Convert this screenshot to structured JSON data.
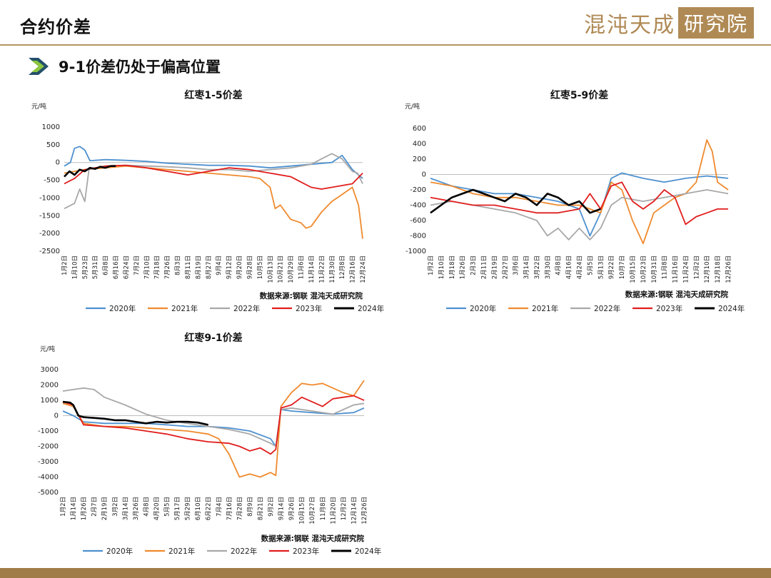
{
  "header": {
    "title": "合约价差",
    "brand_text": "混沌天成",
    "brand_boxed": "研究院"
  },
  "section": {
    "title": "9-1价差仍处于偏高位置"
  },
  "colors": {
    "2020年": "#4e91cf",
    "2021年": "#ef8a2e",
    "2022年": "#a8a8a8",
    "2023年": "#e11d1d",
    "2024年": "#000000"
  },
  "chart_data": [
    {
      "type": "line",
      "title": "红枣1-5价差",
      "ylabel": "元/吨",
      "source": "数据来源:钢联 混沌天成研究院",
      "ylim": [
        -2500,
        1000
      ],
      "yticks": [
        1000,
        500,
        0,
        -500,
        -1000,
        -1500,
        -2000,
        -2500
      ],
      "xticks": [
        "1月2日",
        "1月10日",
        "5月23日",
        "5月31日",
        "6月8日",
        "6月16日",
        "6月24日",
        "7月2日",
        "7月10日",
        "7月18日",
        "7月26日",
        "8月3日",
        "8月11日",
        "8月19日",
        "8月27日",
        "9月4日",
        "9月12日",
        "9月20日",
        "9月28日",
        "10月5日",
        "10月13日",
        "10月21日",
        "10月29日",
        "11月6日",
        "11月14日",
        "11月22日",
        "11月30日",
        "12月8日",
        "12月16日",
        "12月24日"
      ],
      "legend": [
        "2020年",
        "2021年",
        "2022年",
        "2023年",
        "2024年"
      ],
      "series": [
        {
          "name": "2020年",
          "x": [
            0,
            0.6,
            1,
            1.5,
            2,
            2.5,
            4,
            6,
            8,
            10,
            12,
            14,
            16,
            18,
            20,
            22,
            24,
            26,
            27,
            28,
            28.6,
            29
          ],
          "y": [
            -100,
            0,
            400,
            450,
            350,
            50,
            80,
            60,
            30,
            -20,
            -50,
            -80,
            -80,
            -100,
            -150,
            -100,
            -50,
            0,
            200,
            -200,
            -350,
            -450
          ]
        },
        {
          "name": "2021年",
          "x": [
            0,
            1,
            2,
            4,
            6,
            8,
            10,
            12,
            14,
            16,
            18,
            19,
            20,
            20.5,
            21,
            22,
            23,
            23.5,
            24,
            25,
            26,
            27,
            28,
            28.6,
            29
          ],
          "y": [
            -300,
            -250,
            -200,
            -150,
            -100,
            -150,
            -200,
            -250,
            -300,
            -350,
            -400,
            -450,
            -700,
            -1300,
            -1200,
            -1600,
            -1700,
            -1850,
            -1800,
            -1400,
            -1100,
            -900,
            -700,
            -1200,
            -2150
          ]
        },
        {
          "name": "2022年",
          "x": [
            0,
            1,
            1.5,
            2,
            2.4,
            3,
            4,
            6,
            8,
            10,
            12,
            14,
            16,
            18,
            20,
            22,
            24,
            25,
            26,
            27,
            28,
            28.5,
            29
          ],
          "y": [
            -1300,
            -1150,
            -750,
            -1100,
            -200,
            -150,
            -100,
            -80,
            -100,
            -120,
            -150,
            -200,
            -200,
            -250,
            -200,
            -150,
            -50,
            100,
            250,
            100,
            -250,
            -300,
            -600
          ]
        },
        {
          "name": "2023年",
          "x": [
            0,
            1,
            2,
            4,
            6,
            8,
            10,
            12,
            14,
            16,
            18,
            20,
            22,
            23,
            24,
            25,
            26,
            27,
            28,
            29
          ],
          "y": [
            -600,
            -450,
            -200,
            -100,
            -80,
            -150,
            -250,
            -350,
            -250,
            -150,
            -200,
            -300,
            -400,
            -550,
            -700,
            -750,
            -700,
            -650,
            -600,
            -300
          ]
        },
        {
          "name": "2024年",
          "x": [
            0,
            0.5,
            1,
            1.5,
            2,
            2.5,
            3,
            3.5,
            4,
            4.5,
            5
          ],
          "y": [
            -400,
            -250,
            -350,
            -200,
            -250,
            -150,
            -180,
            -120,
            -150,
            -100,
            -100
          ]
        }
      ]
    },
    {
      "type": "line",
      "title": "红枣5-9价差",
      "ylabel": "元/吨",
      "source": "数据来源:钢联 混沌天成研究院",
      "ylim": [
        -1000,
        600
      ],
      "yticks": [
        600,
        400,
        200,
        0,
        -200,
        -400,
        -600,
        -800,
        -1000
      ],
      "xticks": [
        "1月2日",
        "1月10日",
        "1月18日",
        "1月26日",
        "2月3日",
        "2月11日",
        "2月19日",
        "2月27日",
        "3月6日",
        "3月14日",
        "3月22日",
        "3月30日",
        "4月8日",
        "4月16日",
        "4月24日",
        "5月5日",
        "5月13日",
        "9月22日",
        "10月7日",
        "10月15日",
        "10月23日",
        "10月31日",
        "11月8日",
        "11月16日",
        "11月24日",
        "12月2日",
        "12月10日",
        "12月18日",
        "12月26日"
      ],
      "legend": [
        "2020年",
        "2021年",
        "2022年",
        "2023年",
        "2024年"
      ],
      "series": [
        {
          "name": "2020年",
          "x": [
            0,
            2,
            4,
            6,
            8,
            10,
            12,
            14,
            15,
            16,
            17,
            18,
            20,
            22,
            24,
            26,
            28
          ],
          "y": [
            -50,
            -150,
            -200,
            -250,
            -250,
            -300,
            -350,
            -450,
            -800,
            -500,
            -50,
            20,
            -50,
            -100,
            -50,
            -20,
            -50
          ]
        },
        {
          "name": "2021年",
          "x": [
            0,
            2,
            4,
            6,
            8,
            10,
            12,
            14,
            15,
            16,
            17,
            18,
            19,
            20,
            21,
            22,
            23,
            24,
            25,
            26,
            26.5,
            27,
            28
          ],
          "y": [
            -100,
            -150,
            -250,
            -300,
            -300,
            -350,
            -400,
            -400,
            -450,
            -500,
            -100,
            -200,
            -600,
            -900,
            -500,
            -400,
            -300,
            -250,
            -100,
            450,
            300,
            -100,
            -200
          ]
        },
        {
          "name": "2022年",
          "x": [
            0,
            2,
            4,
            6,
            8,
            10,
            11,
            12,
            13,
            14,
            15,
            16,
            17,
            18,
            20,
            22,
            24,
            26,
            28
          ],
          "y": [
            -400,
            -350,
            -400,
            -450,
            -500,
            -600,
            -800,
            -700,
            -850,
            -700,
            -850,
            -700,
            -400,
            -300,
            -350,
            -300,
            -250,
            -200,
            -250
          ]
        },
        {
          "name": "2023年",
          "x": [
            0,
            2,
            4,
            6,
            8,
            10,
            12,
            14,
            15,
            16,
            17,
            18,
            19,
            20,
            21,
            22,
            23,
            24,
            25,
            26,
            27,
            28
          ],
          "y": [
            -300,
            -350,
            -400,
            -400,
            -450,
            -500,
            -500,
            -450,
            -250,
            -450,
            -150,
            -100,
            -350,
            -450,
            -350,
            -200,
            -300,
            -650,
            -550,
            -500,
            -450,
            -450
          ]
        },
        {
          "name": "2024年",
          "x": [
            0,
            1,
            2,
            3,
            4,
            5,
            6,
            7,
            8,
            9,
            10,
            11,
            12,
            13,
            14,
            15,
            16
          ],
          "y": [
            -500,
            -400,
            -300,
            -250,
            -200,
            -250,
            -300,
            -350,
            -250,
            -300,
            -400,
            -250,
            -300,
            -400,
            -350,
            -500,
            -450
          ]
        }
      ]
    },
    {
      "type": "line",
      "title": "红枣9-1价差",
      "ylabel": "元/吨",
      "source": "数据来源:钢联 混沌天成研究院",
      "ylim": [
        -5000,
        3000
      ],
      "yticks": [
        3000,
        2000,
        1000,
        0,
        -1000,
        -2000,
        -3000,
        -4000,
        -5000
      ],
      "xticks": [
        "1月2日",
        "1月14日",
        "1月26日",
        "2月7日",
        "2月19日",
        "3月2日",
        "3月14日",
        "3月26日",
        "4月8日",
        "4月20日",
        "5月5日",
        "5月17日",
        "5月29日",
        "6月10日",
        "6月22日",
        "7月4日",
        "7月16日",
        "7月28日",
        "8月9日",
        "8月21日",
        "9月2日",
        "9月14日",
        "9月26日",
        "10月15日",
        "10月27日",
        "11月8日",
        "11月20日",
        "12月2日",
        "12月14日",
        "12月26日"
      ],
      "legend": [
        "2020年",
        "2021年",
        "2022年",
        "2023年",
        "2024年"
      ],
      "series": [
        {
          "name": "2020年",
          "x": [
            0,
            1,
            2,
            4,
            6,
            8,
            10,
            12,
            14,
            16,
            18,
            20,
            20.5,
            21,
            22,
            24,
            26,
            28,
            29
          ],
          "y": [
            300,
            0,
            -400,
            -500,
            -500,
            -500,
            -600,
            -700,
            -700,
            -800,
            -1000,
            -1500,
            -2000,
            400,
            300,
            200,
            100,
            200,
            500
          ]
        },
        {
          "name": "2021年",
          "x": [
            0,
            1,
            2,
            4,
            6,
            8,
            10,
            12,
            14,
            15,
            16,
            17,
            18,
            19,
            20,
            20.5,
            21,
            22,
            23,
            24,
            25,
            26,
            27,
            28,
            29
          ],
          "y": [
            800,
            600,
            -500,
            -700,
            -700,
            -800,
            -900,
            -1000,
            -1200,
            -1500,
            -2500,
            -4000,
            -3800,
            -4000,
            -3700,
            -3900,
            600,
            1500,
            2100,
            2000,
            2100,
            1800,
            1500,
            1300,
            2300
          ]
        },
        {
          "name": "2022年",
          "x": [
            0,
            1,
            2,
            3,
            4,
            6,
            8,
            10,
            12,
            14,
            16,
            18,
            20,
            20.5,
            21,
            22,
            24,
            26,
            28,
            29
          ],
          "y": [
            1600,
            1700,
            1800,
            1700,
            1200,
            700,
            100,
            -300,
            -500,
            -700,
            -900,
            -1200,
            -1800,
            -2000,
            400,
            500,
            300,
            100,
            700,
            800
          ]
        },
        {
          "name": "2023年",
          "x": [
            0,
            1,
            2,
            4,
            6,
            8,
            10,
            12,
            14,
            16,
            17,
            18,
            19,
            20,
            20.5,
            21,
            22,
            23,
            24,
            25,
            26,
            27,
            28,
            29
          ],
          "y": [
            900,
            700,
            -600,
            -700,
            -800,
            -1000,
            -1200,
            -1500,
            -1700,
            -1800,
            -2000,
            -2300,
            -2100,
            -2500,
            -2200,
            500,
            700,
            1200,
            900,
            600,
            1100,
            1200,
            1300,
            1000
          ]
        },
        {
          "name": "2024年",
          "x": [
            0,
            0.7,
            1,
            1.5,
            2,
            3,
            4,
            5,
            6,
            7,
            8,
            9,
            10,
            11,
            12,
            13,
            14
          ],
          "y": [
            900,
            850,
            700,
            0,
            -100,
            -150,
            -200,
            -300,
            -300,
            -400,
            -500,
            -400,
            -450,
            -400,
            -400,
            -450,
            -600
          ]
        }
      ]
    }
  ]
}
